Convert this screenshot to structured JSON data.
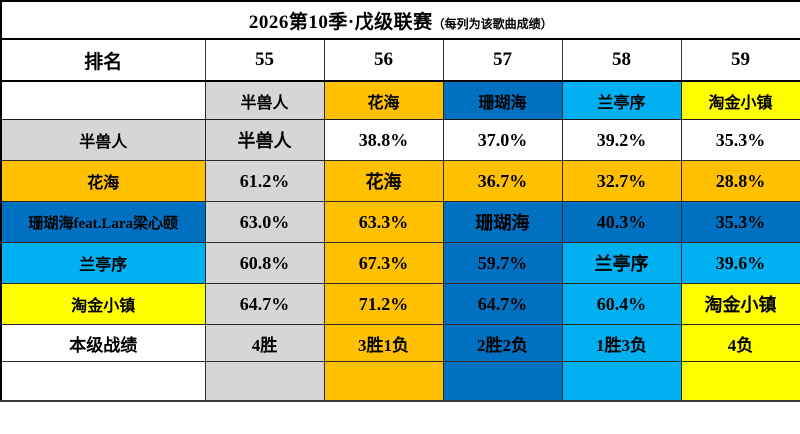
{
  "title": {
    "main": "2026第10季·戊级联赛",
    "note": "（每列为该歌曲成绩）"
  },
  "palette": {
    "gray": "#D6D6D6",
    "orange": "#FFC000",
    "blue": "#0070C0",
    "lightblue": "#00B0F0",
    "yellow": "#FFFF00",
    "white": "#FFFFFF"
  },
  "chart_data": {
    "type": "table",
    "title": "2026第10季·戊级联赛",
    "subtitle": "（每列为该歌曲成绩）",
    "corner_header": "排名",
    "columns": [
      "55",
      "56",
      "57",
      "58",
      "59"
    ],
    "header_songs": {
      "texts": [
        "半兽人",
        "花海",
        "珊瑚海",
        "兰亭序",
        "淘金小镇"
      ],
      "colors": [
        "gray",
        "orange",
        "blue",
        "lightblue",
        "yellow"
      ]
    },
    "rows": [
      {
        "label": {
          "text": "半兽人",
          "color": "gray"
        },
        "cells": [
          {
            "text": "半兽人",
            "color": "gray"
          },
          {
            "text": "38.8%",
            "color": "white"
          },
          {
            "text": "37.0%",
            "color": "white"
          },
          {
            "text": "39.2%",
            "color": "white"
          },
          {
            "text": "35.3%",
            "color": "white"
          }
        ]
      },
      {
        "label": {
          "text": "花海",
          "color": "orange"
        },
        "cells": [
          {
            "text": "61.2%",
            "color": "gray"
          },
          {
            "text": "花海",
            "color": "orange"
          },
          {
            "text": "36.7%",
            "color": "orange"
          },
          {
            "text": "32.7%",
            "color": "orange"
          },
          {
            "text": "28.8%",
            "color": "orange"
          }
        ]
      },
      {
        "label": {
          "text": "珊瑚海feat.Lara梁心颐",
          "color": "blue"
        },
        "cells": [
          {
            "text": "63.0%",
            "color": "gray"
          },
          {
            "text": "63.3%",
            "color": "orange"
          },
          {
            "text": "珊瑚海",
            "color": "blue"
          },
          {
            "text": "40.3%",
            "color": "blue"
          },
          {
            "text": "35.3%",
            "color": "blue"
          }
        ]
      },
      {
        "label": {
          "text": "兰亭序",
          "color": "lightblue"
        },
        "cells": [
          {
            "text": "60.8%",
            "color": "gray"
          },
          {
            "text": "67.3%",
            "color": "orange"
          },
          {
            "text": "59.7%",
            "color": "blue"
          },
          {
            "text": "兰亭序",
            "color": "lightblue"
          },
          {
            "text": "39.6%",
            "color": "lightblue"
          }
        ]
      },
      {
        "label": {
          "text": "淘金小镇",
          "color": "yellow"
        },
        "cells": [
          {
            "text": "64.7%",
            "color": "gray"
          },
          {
            "text": "71.2%",
            "color": "orange"
          },
          {
            "text": "64.7%",
            "color": "blue"
          },
          {
            "text": "60.4%",
            "color": "lightblue"
          },
          {
            "text": "淘金小镇",
            "color": "yellow"
          }
        ]
      },
      {
        "label": {
          "text": "本级战绩",
          "color": "white"
        },
        "cells": [
          {
            "text": "4胜",
            "color": "gray"
          },
          {
            "text": "3胜1负",
            "color": "orange"
          },
          {
            "text": "2胜2负",
            "color": "blue"
          },
          {
            "text": "1胜3负",
            "color": "lightblue"
          },
          {
            "text": "4负",
            "color": "yellow"
          }
        ]
      }
    ],
    "footer_strip": {
      "label_color": "white",
      "colors": [
        "gray",
        "orange",
        "blue",
        "lightblue",
        "yellow"
      ]
    }
  }
}
